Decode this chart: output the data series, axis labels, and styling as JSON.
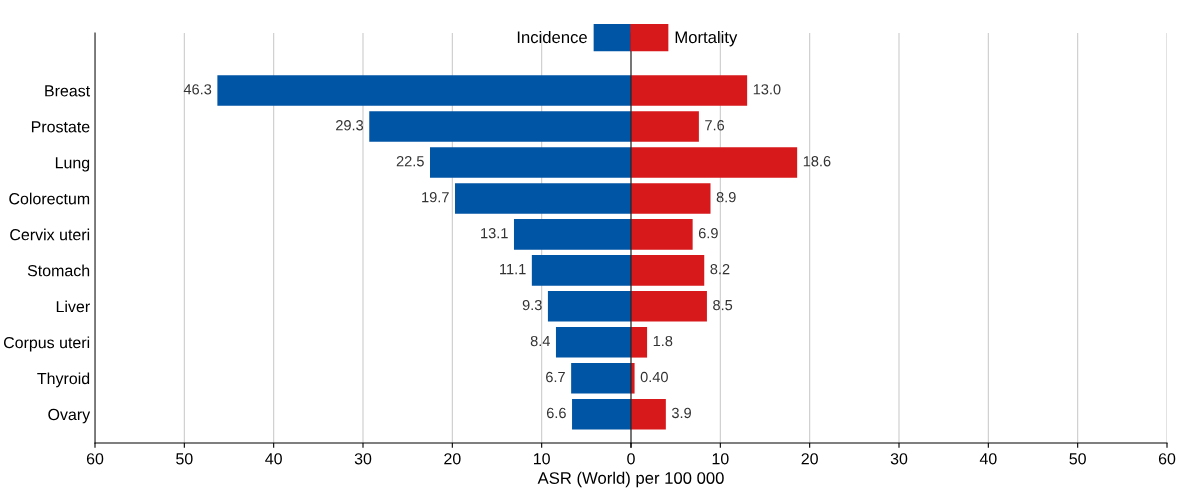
{
  "chart_data": [
    {
      "type": "bar",
      "orientation": "horizontal",
      "xlabel": "ASR (World) per 100 000",
      "categories": [
        "Breast",
        "Prostate",
        "Lung",
        "Colorectum",
        "Cervix uteri",
        "Stomach",
        "Liver",
        "Corpus uteri",
        "Thyroid",
        "Ovary"
      ],
      "series": [
        {
          "name": "Incidence",
          "color": "#0055a4",
          "values": [
            46.3,
            29.3,
            22.5,
            19.7,
            13.1,
            11.1,
            9.3,
            8.4,
            6.7,
            6.6
          ]
        }
      ],
      "data_labels": true,
      "xlim": [
        60,
        0
      ],
      "xticks": [
        60,
        50,
        40,
        30,
        20,
        10,
        0
      ],
      "grid": "x",
      "legend": "top right"
    },
    {
      "type": "bar",
      "orientation": "horizontal",
      "categories": [
        null,
        null,
        null,
        null,
        null,
        null,
        null,
        null,
        null,
        null
      ],
      "series": [
        {
          "name": "Mortality",
          "color": "#d7191c",
          "values": [
            13.0,
            7.6,
            18.6,
            8.9,
            6.9,
            8.2,
            8.5,
            1.8,
            0.4,
            3.9
          ],
          "value_labels": [
            "13.0",
            "7.6",
            "18.6",
            "8.9",
            "6.9",
            "8.2",
            "8.5",
            "1.8",
            "0.40",
            "3.9"
          ]
        }
      ],
      "xlim": [
        0,
        60
      ],
      "xticks": [
        {
          "value": 0,
          "label": null
        },
        10,
        20,
        30,
        40,
        50,
        60
      ],
      "tick_labels": "x",
      "grid": "x",
      "legend": "top left"
    }
  ]
}
